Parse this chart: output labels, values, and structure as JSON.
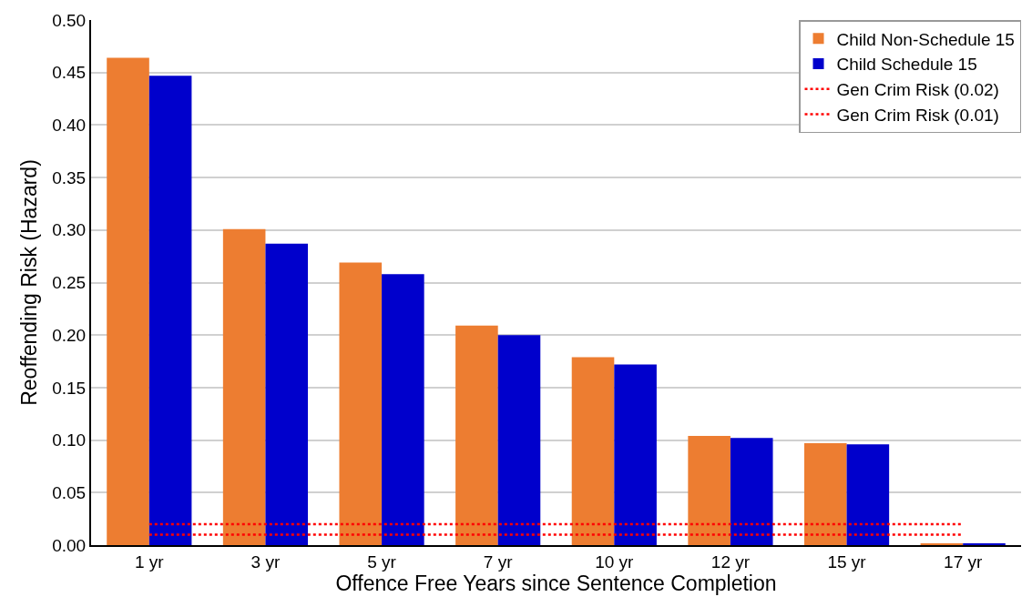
{
  "chart_data": {
    "type": "bar",
    "xlabel": "Offence Free Years since Sentence Completion",
    "ylabel": "Reoffending Risk (Hazard)",
    "categories": [
      "1 yr",
      "3 yr",
      "5 yr",
      "7 yr",
      "10 yr",
      "12 yr",
      "15 yr",
      "17 yr"
    ],
    "series": [
      {
        "name": "Child Non-Schedule 15",
        "color": "#ed7d31",
        "values": [
          0.464,
          0.301,
          0.269,
          0.209,
          0.179,
          0.104,
          0.097,
          0.001
        ]
      },
      {
        "name": "Child Schedule 15",
        "color": "#0000cc",
        "values": [
          0.447,
          0.287,
          0.258,
          0.2,
          0.172,
          0.102,
          0.096,
          0.001
        ]
      },
      {
        "name": "Gen Crim Risk (0.02)",
        "type": "line",
        "color": "#ff0000",
        "line_style": "dotted",
        "marker": "none",
        "values": [
          0.02,
          0.02,
          0.02,
          0.02,
          0.02,
          0.02,
          0.02,
          0.02
        ]
      },
      {
        "name": "Gen Crim Risk (0.01)",
        "type": "line",
        "color": "#ff0000",
        "line_style": "dotted",
        "marker": "none",
        "values": [
          0.01,
          0.01,
          0.01,
          0.01,
          0.01,
          0.01,
          0.01,
          0.01
        ]
      }
    ],
    "ylim": [
      0,
      0.5
    ],
    "yticks": [
      {
        "value": 0,
        "label": "0.00"
      },
      {
        "value": 0.05,
        "label": "0.05"
      },
      {
        "value": 0.1,
        "label": "0.10"
      },
      {
        "value": 0.15,
        "label": "0.15"
      },
      {
        "value": 0.2,
        "label": "0.20"
      },
      {
        "value": 0.25,
        "label": "0.25"
      },
      {
        "value": 0.3,
        "label": "0.30"
      },
      {
        "value": 0.35,
        "label": "0.35"
      },
      {
        "value": 0.4,
        "label": "0.40"
      },
      {
        "value": 0.45,
        "label": "0.45"
      },
      {
        "value": 0.5,
        "label": "0.50"
      }
    ],
    "grid": "y",
    "legend": "top right"
  }
}
